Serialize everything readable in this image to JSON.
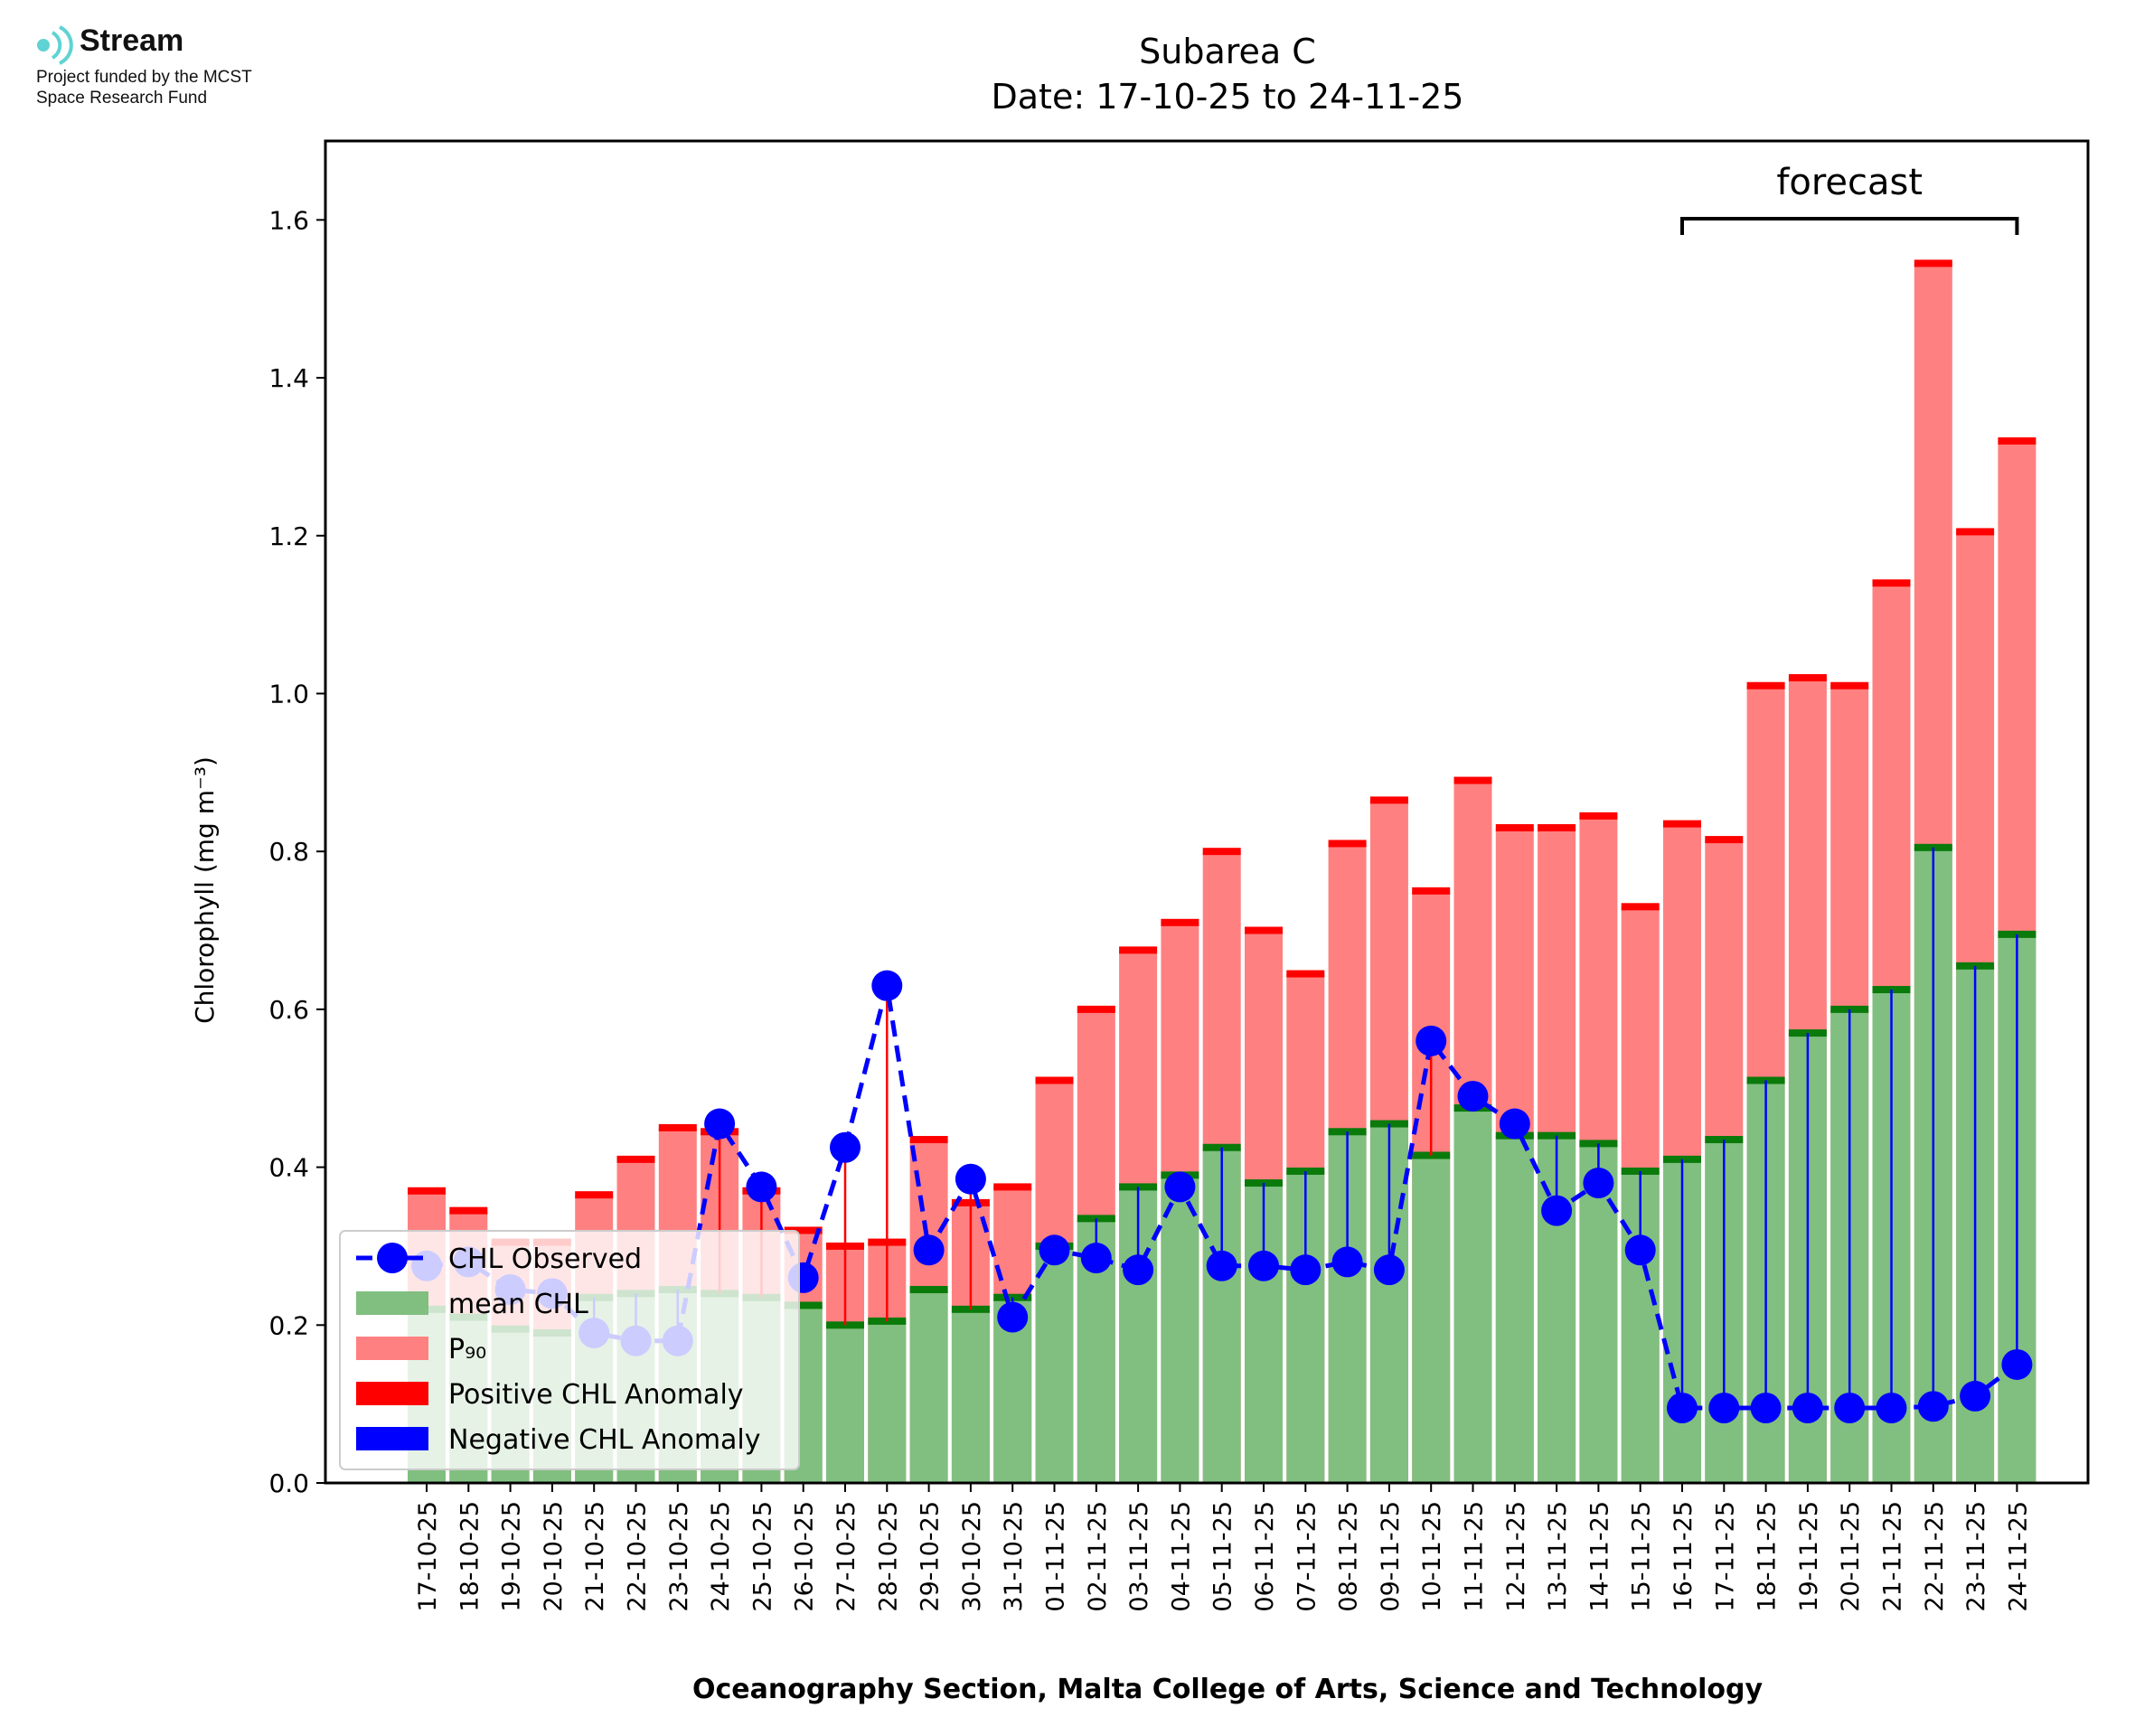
{
  "logo": {
    "name": "Stream",
    "funding_line1": "Project funded by the MCST",
    "funding_line2": "Space Research Fund"
  },
  "colors": {
    "mean": "#80bf80",
    "mean_edge": "#0a7a0a",
    "p90": "#ff8080",
    "p90_edge": "#ff0000",
    "observed": "#0000ff",
    "positive_anomaly": "#ff0000",
    "negative_anomaly": "#0000ff",
    "logo_accent": "#5fd3d3"
  },
  "chart_data": {
    "type": "bar",
    "title_line1": "Subarea C",
    "title_line2": "Date: 17-10-25 to 24-11-25",
    "xlabel": "Oceanography Section, Malta College of Arts, Science and Technology",
    "ylabel": "Chlorophyll (mg m⁻³)",
    "ylim": [
      0,
      1.7
    ],
    "yticks": [
      "0.0",
      "0.2",
      "0.4",
      "0.6",
      "0.8",
      "1.0",
      "1.2",
      "1.4",
      "1.6"
    ],
    "forecast_label": "forecast",
    "forecast_range": [
      "16-11-25",
      "24-11-25"
    ],
    "legend_position": "lower-left",
    "categories": [
      "17-10-25",
      "18-10-25",
      "19-10-25",
      "20-10-25",
      "21-10-25",
      "22-10-25",
      "23-10-25",
      "24-10-25",
      "25-10-25",
      "26-10-25",
      "27-10-25",
      "28-10-25",
      "29-10-25",
      "30-10-25",
      "31-10-25",
      "01-11-25",
      "02-11-25",
      "03-11-25",
      "04-11-25",
      "05-11-25",
      "06-11-25",
      "07-11-25",
      "08-11-25",
      "09-11-25",
      "10-11-25",
      "11-11-25",
      "12-11-25",
      "13-11-25",
      "14-11-25",
      "15-11-25",
      "16-11-25",
      "17-11-25",
      "18-11-25",
      "19-11-25",
      "20-11-25",
      "21-11-25",
      "22-11-25",
      "23-11-25",
      "24-11-25"
    ],
    "series": [
      {
        "name": "CHL Observed",
        "values": [
          0.275,
          0.28,
          0.245,
          0.24,
          0.19,
          0.18,
          0.18,
          0.455,
          0.375,
          0.26,
          0.425,
          0.63,
          0.295,
          0.385,
          0.21,
          0.295,
          0.285,
          0.27,
          0.375,
          0.275,
          0.275,
          0.27,
          0.28,
          0.27,
          0.56,
          0.49,
          0.455,
          0.345,
          0.38,
          0.295,
          0.095,
          0.095,
          0.095,
          0.095,
          0.095,
          0.095,
          0.097,
          0.11,
          0.15
        ]
      },
      {
        "name": "mean CHL",
        "values": [
          0.22,
          0.21,
          0.195,
          0.19,
          0.235,
          0.24,
          0.245,
          0.24,
          0.235,
          0.225,
          0.2,
          0.205,
          0.245,
          0.22,
          0.235,
          0.3,
          0.335,
          0.375,
          0.39,
          0.425,
          0.38,
          0.395,
          0.445,
          0.455,
          0.415,
          0.475,
          0.44,
          0.44,
          0.43,
          0.395,
          0.41,
          0.435,
          0.51,
          0.57,
          0.6,
          0.625,
          0.805,
          0.655,
          0.695
        ]
      },
      {
        "name": "P₉₀",
        "values": [
          0.37,
          0.345,
          0.305,
          0.305,
          0.365,
          0.41,
          0.45,
          0.445,
          0.37,
          0.32,
          0.3,
          0.305,
          0.435,
          0.355,
          0.375,
          0.51,
          0.6,
          0.675,
          0.71,
          0.8,
          0.7,
          0.645,
          0.81,
          0.865,
          0.75,
          0.89,
          0.83,
          0.83,
          0.845,
          0.73,
          0.835,
          0.815,
          1.01,
          1.02,
          1.01,
          1.14,
          1.545,
          1.205,
          1.32
        ]
      }
    ],
    "legend": [
      {
        "label": "CHL Observed",
        "kind": "line-marker"
      },
      {
        "label": "mean CHL",
        "kind": "patch-mean"
      },
      {
        "label": "P₉₀",
        "kind": "patch-p90"
      },
      {
        "label": "Positive CHL Anomaly",
        "kind": "patch-pos"
      },
      {
        "label": "Negative CHL Anomaly",
        "kind": "patch-neg"
      }
    ]
  }
}
